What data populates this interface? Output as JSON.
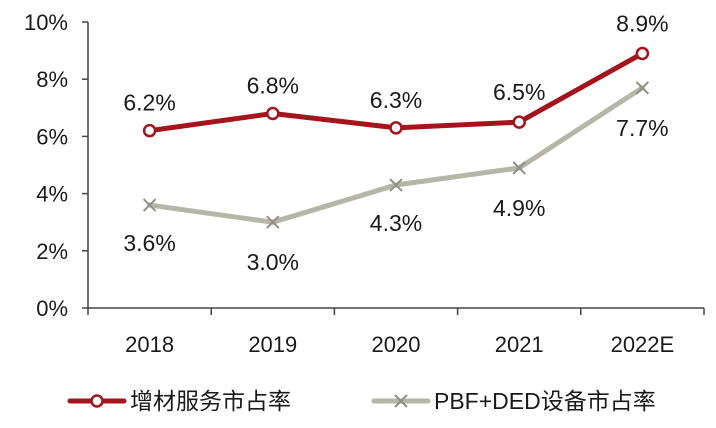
{
  "chart_data": {
    "type": "line",
    "categories": [
      "2018",
      "2019",
      "2020",
      "2021",
      "2022E"
    ],
    "series": [
      {
        "name": "增材服务市占率",
        "values": [
          6.2,
          6.8,
          6.3,
          6.5,
          8.9
        ],
        "labels": [
          "6.2%",
          "6.8%",
          "6.3%",
          "6.5%",
          "8.9%"
        ],
        "color": "#a5141c",
        "marker": "circle"
      },
      {
        "name": "PBF+DED设备市占率",
        "values": [
          3.6,
          3.0,
          4.3,
          4.9,
          7.7
        ],
        "labels": [
          "3.6%",
          "3.0%",
          "4.3%",
          "4.9%",
          "7.7%"
        ],
        "color": "#b5b5a8",
        "marker": "x"
      }
    ],
    "ylim": [
      0,
      10
    ],
    "yticks": [
      0,
      2,
      4,
      6,
      8,
      10
    ],
    "ytick_labels": [
      "0%",
      "2%",
      "4%",
      "6%",
      "8%",
      "10%"
    ],
    "grid": false,
    "legend": "bottom"
  }
}
